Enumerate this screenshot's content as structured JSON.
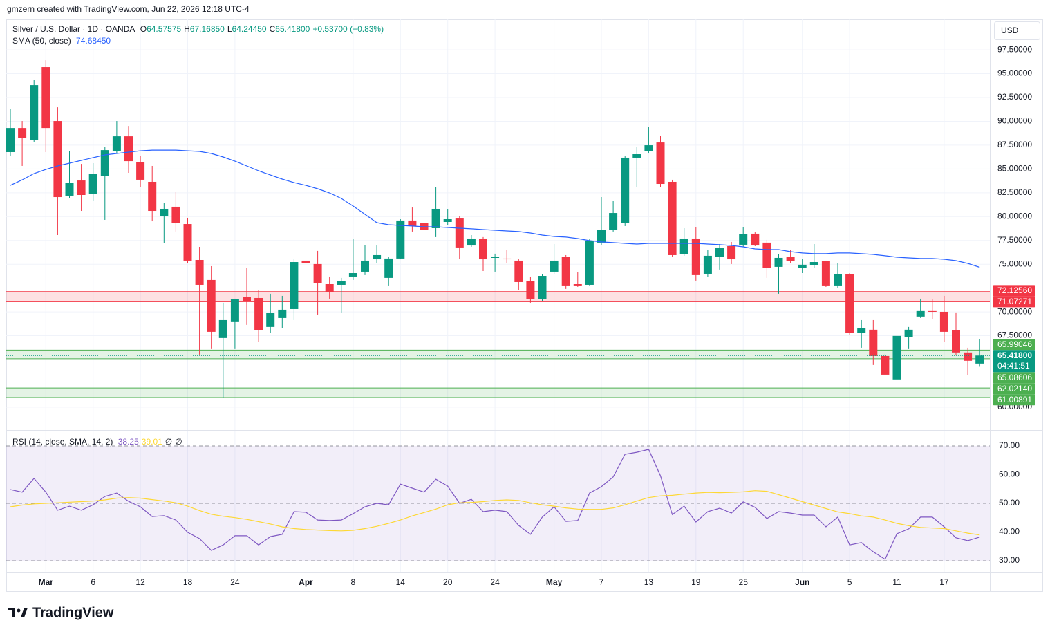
{
  "attribution": "gmzern created with TradingView.com, Jun 22, 2026 12:18 UTC-4",
  "brand": "TradingView",
  "chart_data": [
    {
      "type": "candlestick",
      "title": "Silver / U.S. Dollar · 1D · OANDA",
      "ohlc_legend": [
        {
          "key": "O",
          "value": "64.57575"
        },
        {
          "key": "H",
          "value": "67.16850"
        },
        {
          "key": "L",
          "value": "64.24450"
        },
        {
          "key": "C",
          "value": "65.41800"
        }
      ],
      "change": "+0.53700 (+0.83%)",
      "currency": "USD",
      "categories": [
        null,
        null,
        null,
        "Mar",
        null,
        null,
        null,
        "6",
        null,
        null,
        null,
        "12",
        null,
        null,
        null,
        "18",
        null,
        null,
        null,
        "24",
        null,
        null,
        null,
        null,
        null,
        "Apr",
        null,
        null,
        null,
        "8",
        null,
        null,
        null,
        "14",
        null,
        null,
        null,
        "20",
        null,
        null,
        null,
        "24",
        null,
        null,
        null,
        null,
        "May",
        null,
        null,
        null,
        "7",
        null,
        null,
        null,
        "13",
        null,
        null,
        null,
        "19",
        null,
        null,
        null,
        "25",
        null,
        null,
        null,
        null,
        "Jun",
        null,
        null,
        null,
        "5",
        null,
        null,
        null,
        "11",
        null,
        null,
        null,
        "17",
        null,
        null,
        null
      ],
      "open": [
        86.77,
        89.3,
        88.07,
        95.69,
        90.03,
        82.2,
        83.79,
        82.41,
        84.23,
        86.91,
        88.43,
        85.75,
        83.65,
        80.02,
        81.04,
        79.22,
        75.45,
        73.35,
        67.26,
        68.93,
        71.54,
        71.46,
        68.42,
        69.36,
        70.3,
        75.38,
        75.02,
        72.91,
        72.84,
        73.71,
        74.22,
        75.52,
        73.57,
        75.6,
        79.59,
        79.3,
        78.79,
        79.44,
        79.8,
        76.97,
        77.7,
        75.67,
        75.6,
        75.38,
        73.2,
        71.32,
        74.22,
        75.81,
        72.91,
        72.84,
        77.27,
        78.64,
        79.3,
        86.19,
        86.91,
        87.78,
        83.65,
        76.03,
        77.7,
        74.0,
        75.74,
        76.9,
        77.05,
        78.21,
        77.27,
        74.73,
        75.81,
        74.58,
        74.87,
        75.31,
        72.77,
        73.93,
        67.77,
        68.13,
        65.37,
        62.91,
        67.33,
        69.51,
        70.09,
        70.01,
        68.06,
        65.74,
        64.57575
      ],
      "high": [
        91.33,
        90.03,
        94.38,
        96.41,
        91.48,
        86.91,
        85.53,
        85.61,
        87.34,
        90.03,
        89.52,
        86.4,
        85.32,
        81.47,
        82.56,
        79.88,
        76.83,
        74.8,
        70.96,
        71.39,
        74.65,
        72.26,
        71.9,
        71.68,
        75.52,
        76.11,
        76.4,
        73.71,
        73.57,
        77.7,
        76.97,
        76.97,
        75.74,
        79.73,
        80.96,
        80.96,
        83.14,
        80.75,
        80.09,
        78.06,
        77.85,
        76.11,
        76.47,
        75.52,
        73.71,
        74.0,
        77.12,
        75.96,
        74.15,
        77.63,
        82.05,
        81.69,
        86.33,
        87.34,
        89.38,
        88.51,
        83.87,
        78.79,
        78.93,
        76.47,
        77.12,
        77.34,
        78.93,
        78.35,
        77.56,
        76.03,
        76.47,
        75.52,
        77.12,
        75.38,
        75.16,
        74.07,
        69.14,
        69.14,
        65.59,
        67.62,
        68.42,
        71.39,
        71.32,
        71.68,
        69.94,
        66.24,
        67.1685
      ],
      "low": [
        86.4,
        85.32,
        87.85,
        86.77,
        78.06,
        81.91,
        80.6,
        81.69,
        79.66,
        86.62,
        84.59,
        83.14,
        79.51,
        77.19,
        78.43,
        75.16,
        65.52,
        66.1,
        61.02,
        66.1,
        68.64,
        66.82,
        67.77,
        68.27,
        69.14,
        74.8,
        69.72,
        71.39,
        69.94,
        73.35,
        73.86,
        75.16,
        72.77,
        75.52,
        78.43,
        78.21,
        77.85,
        79.15,
        75.52,
        76.83,
        74.29,
        74.22,
        75.16,
        72.26,
        70.96,
        71.17,
        74.0,
        72.41,
        72.62,
        72.77,
        76.97,
        78.43,
        79.01,
        83.14,
        86.62,
        83.14,
        75.74,
        75.89,
        73.28,
        73.71,
        74.44,
        75.02,
        76.83,
        76.9,
        73.57,
        71.9,
        75.09,
        74.07,
        74.58,
        72.62,
        72.55,
        67.62,
        66.24,
        64.43,
        63.34,
        61.6,
        66.1,
        69.36,
        69.22,
        66.82,
        65.45,
        63.34,
        64.2445
      ],
      "close": [
        89.3,
        88.22,
        93.8,
        89.3,
        82.05,
        83.57,
        82.27,
        84.45,
        86.98,
        88.43,
        85.82,
        83.87,
        80.6,
        80.82,
        79.3,
        75.38,
        72.84,
        67.91,
        69.14,
        71.32,
        71.1,
        68.06,
        69.87,
        70.23,
        75.23,
        75.09,
        72.99,
        72.12,
        73.2,
        74.07,
        75.38,
        75.96,
        75.6,
        79.59,
        79.01,
        78.64,
        80.82,
        79.73,
        76.76,
        77.7,
        75.52,
        75.74,
        75.52,
        73.13,
        71.32,
        73.78,
        75.38,
        72.77,
        72.77,
        77.48,
        78.57,
        80.38,
        86.19,
        86.55,
        87.49,
        83.43,
        75.96,
        77.7,
        73.86,
        75.89,
        76.69,
        75.52,
        78.14,
        76.97,
        74.65,
        75.67,
        75.31,
        74.95,
        75.23,
        72.77,
        73.93,
        67.77,
        68.27,
        65.37,
        63.41,
        67.48,
        68.13,
        70.09,
        70.01,
        67.91,
        65.74,
        64.87,
        65.418
      ],
      "up_color": "#089981",
      "down_color": "#f23645",
      "overlay": {
        "name": "SMA (50, close)",
        "value_label": "74.68450",
        "color": "#2962ff",
        "values": [
          83.28,
          83.86,
          84.52,
          84.95,
          85.32,
          85.61,
          85.9,
          86.19,
          86.48,
          86.62,
          86.77,
          86.91,
          86.98,
          86.98,
          86.98,
          86.91,
          86.84,
          86.62,
          86.26,
          85.82,
          85.32,
          84.81,
          84.37,
          83.94,
          83.57,
          83.28,
          82.92,
          82.49,
          81.91,
          81.11,
          80.24,
          79.37,
          79.15,
          79.08,
          79.01,
          78.93,
          78.93,
          78.86,
          78.79,
          78.72,
          78.64,
          78.57,
          78.5,
          78.43,
          78.28,
          78.06,
          77.92,
          77.85,
          77.7,
          77.48,
          77.34,
          77.27,
          77.19,
          77.12,
          77.19,
          77.19,
          77.19,
          77.19,
          77.19,
          77.12,
          77.05,
          76.97,
          76.83,
          76.61,
          76.54,
          76.54,
          76.32,
          76.18,
          76.11,
          76.11,
          76.18,
          76.18,
          76.11,
          76.03,
          75.89,
          75.74,
          75.67,
          75.6,
          75.6,
          75.52,
          75.38,
          75.09,
          74.6845
        ]
      },
      "ylim": [
        57.6,
        100.7
      ],
      "yticks": [
        {
          "value": 60,
          "label": "60.00000"
        },
        {
          "value": 67.5,
          "label": "67.50000"
        },
        {
          "value": 70,
          "label": "70.00000"
        },
        {
          "value": 75,
          "label": "75.00000"
        },
        {
          "value": 77.5,
          "label": "77.50000"
        },
        {
          "value": 80,
          "label": "80.00000"
        },
        {
          "value": 82.5,
          "label": "82.50000"
        },
        {
          "value": 85,
          "label": "85.00000"
        },
        {
          "value": 87.5,
          "label": "87.50000"
        },
        {
          "value": 90,
          "label": "90.00000"
        },
        {
          "value": 92.5,
          "label": "92.50000"
        },
        {
          "value": 95,
          "label": "95.00000"
        },
        {
          "value": 97.5,
          "label": "97.50000"
        }
      ],
      "grid": true,
      "zones": [
        {
          "low": 71.07271,
          "low_label": "71.07271",
          "high": 72.1256,
          "high_label": "72.12560",
          "color": "#f23645"
        },
        {
          "low": 65.08606,
          "low_label": "65.08606",
          "high": 65.99046,
          "high_label": "65.99046",
          "color": "#4caf50"
        },
        {
          "low": 61.00891,
          "low_label": "61.00891",
          "high": 62.0214,
          "high_label": "62.02140",
          "color": "#4caf50"
        }
      ],
      "last_price": {
        "value": 65.418,
        "label": "65.41800",
        "countdown": "04:41:51",
        "color": "#089981"
      }
    },
    {
      "type": "line",
      "title": "RSI (14, close, SMA, 14, 2)",
      "extra": [
        "∅",
        "∅"
      ],
      "series": [
        {
          "color": "#7e57c2",
          "values": [
            54.8,
            53.9,
            58.7,
            53.9,
            47.6,
            49.0,
            47.6,
            49.5,
            52.4,
            53.6,
            50.7,
            48.8,
            45.4,
            45.7,
            44.2,
            39.9,
            37.7,
            33.6,
            35.5,
            38.7,
            38.7,
            35.5,
            38.4,
            39.2,
            47.1,
            46.9,
            44.2,
            44.0,
            44.2,
            46.4,
            48.8,
            50.0,
            49.5,
            56.7,
            55.3,
            53.9,
            58.4,
            56.0,
            50.0,
            51.4,
            47.1,
            47.6,
            47.1,
            42.3,
            39.2,
            45.2,
            48.8,
            43.7,
            44.0,
            53.6,
            55.8,
            59.2,
            67.1,
            67.8,
            68.8,
            59.6,
            46.1,
            49.0,
            43.5,
            47.1,
            48.3,
            46.6,
            50.5,
            48.6,
            44.7,
            47.1,
            46.6,
            45.9,
            45.9,
            41.8,
            45.2,
            35.5,
            36.3,
            33.1,
            30.5,
            39.4,
            41.1,
            45.2,
            45.2,
            41.8,
            38.0,
            37.0,
            38.25
          ]
        },
        {
          "color": "#fdd835",
          "values": [
            48.8,
            49.4,
            49.8,
            50.0,
            50.2,
            50.4,
            50.6,
            50.8,
            51.2,
            51.8,
            52.0,
            51.8,
            51.3,
            50.8,
            50.2,
            49.0,
            47.5,
            46.2,
            45.5,
            45.0,
            44.4,
            43.6,
            42.8,
            41.8,
            41.2,
            40.9,
            40.7,
            40.5,
            40.4,
            40.6,
            41.2,
            42.0,
            43.0,
            44.2,
            45.6,
            46.8,
            48.0,
            49.5,
            50.2,
            50.3,
            50.6,
            51.0,
            51.2,
            51.0,
            50.2,
            49.5,
            49.0,
            48.4,
            48.0,
            47.9,
            47.9,
            48.4,
            49.5,
            50.8,
            52.0,
            52.6,
            52.8,
            53.2,
            53.6,
            53.8,
            53.7,
            53.8,
            54.0,
            54.4,
            54.2,
            53.0,
            51.8,
            50.6,
            49.4,
            48.2,
            47.0,
            46.4,
            45.6,
            45.2,
            44.2,
            43.0,
            42.2,
            41.6,
            41.4,
            41.2,
            40.4,
            39.6,
            39.01
          ]
        }
      ],
      "ylim": [
        25.9,
        75.3
      ],
      "yticks": [
        {
          "value": 30,
          "label": "30.00"
        },
        {
          "value": 40,
          "label": "40.00"
        },
        {
          "value": 50,
          "label": "50.00"
        },
        {
          "value": 60,
          "label": "60.00"
        },
        {
          "value": 70,
          "label": "70.00"
        }
      ],
      "band": [
        30,
        70
      ],
      "midline": 50,
      "band_color": "#7e57c2"
    }
  ]
}
